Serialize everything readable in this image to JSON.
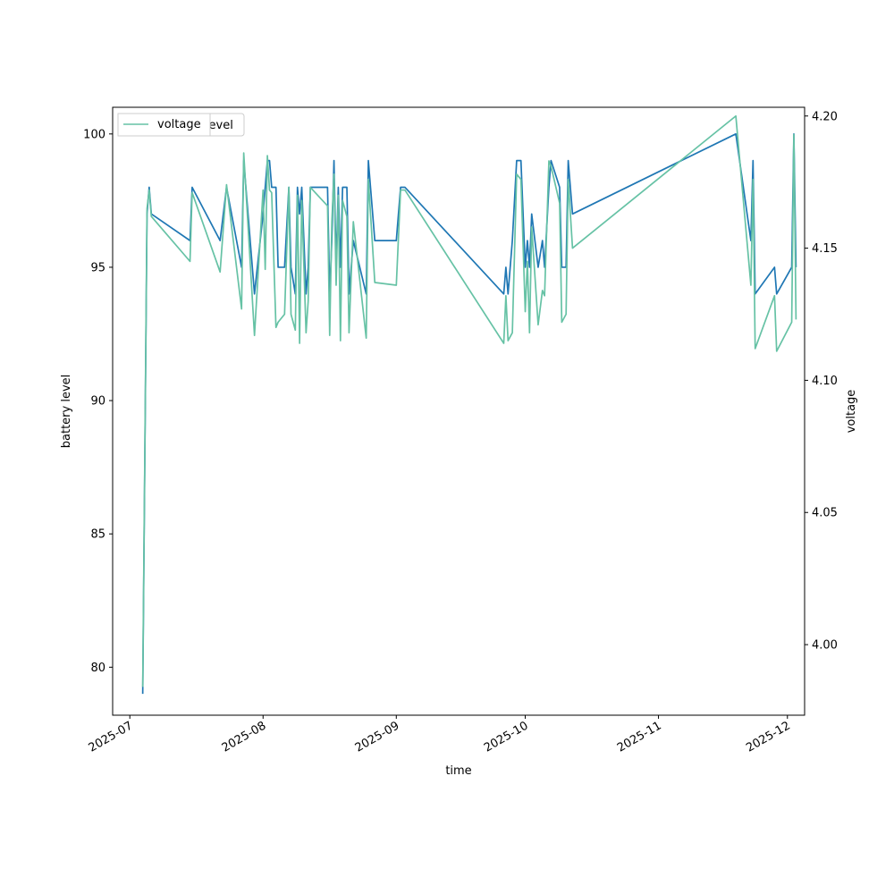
{
  "chart_data": {
    "type": "line",
    "xlabel": "time",
    "ylabel": "battery level",
    "y2label": "voltage",
    "x_type": "date",
    "x_ticks": [
      "2025-07",
      "2025-08",
      "2025-09",
      "2025-10",
      "2025-11",
      "2025-12"
    ],
    "xlim": [
      "2025-06-27",
      "2025-12-05"
    ],
    "ylim": [
      78.2,
      101.0
    ],
    "y2lim": [
      3.9733,
      4.2033
    ],
    "y_ticks": [
      80,
      85,
      90,
      95,
      100
    ],
    "y2_ticks": [
      4.0,
      4.05,
      4.1,
      4.15,
      4.2
    ],
    "grid": false,
    "legend": {
      "placement": "upper-left",
      "entries": [
        {
          "label": "battery_level",
          "series": "battery_level"
        },
        {
          "label": "voltage",
          "series": "voltage"
        }
      ]
    },
    "series": [
      {
        "name": "battery_level",
        "axis": "left",
        "color": "#1f77b4",
        "points": [
          [
            "2025-07-04T00:00",
            79
          ],
          [
            "2025-07-05T00:00",
            97
          ],
          [
            "2025-07-05T12:00",
            98
          ],
          [
            "2025-07-06T00:00",
            97
          ],
          [
            "2025-07-15T00:00",
            96
          ],
          [
            "2025-07-15T12:00",
            98
          ],
          [
            "2025-07-22T00:00",
            96
          ],
          [
            "2025-07-23T12:00",
            98
          ],
          [
            "2025-07-27T00:00",
            95
          ],
          [
            "2025-07-27T12:00",
            99
          ],
          [
            "2025-07-30T00:00",
            94
          ],
          [
            "2025-08-01T00:00",
            97
          ],
          [
            "2025-08-01T12:00",
            98
          ],
          [
            "2025-08-02T00:00",
            99
          ],
          [
            "2025-08-02T12:00",
            99
          ],
          [
            "2025-08-03T00:00",
            98
          ],
          [
            "2025-08-04T00:00",
            98
          ],
          [
            "2025-08-04T12:00",
            95
          ],
          [
            "2025-08-06T00:00",
            95
          ],
          [
            "2025-08-07T00:00",
            98
          ],
          [
            "2025-08-07T12:00",
            95
          ],
          [
            "2025-08-08T12:00",
            94
          ],
          [
            "2025-08-09T00:00",
            98
          ],
          [
            "2025-08-09T12:00",
            97
          ],
          [
            "2025-08-10T00:00",
            98
          ],
          [
            "2025-08-11T00:00",
            94
          ],
          [
            "2025-08-11T12:00",
            95
          ],
          [
            "2025-08-12T00:00",
            98
          ],
          [
            "2025-08-16T00:00",
            98
          ],
          [
            "2025-08-16T12:00",
            94
          ],
          [
            "2025-08-17T00:00",
            96
          ],
          [
            "2025-08-17T12:00",
            99
          ],
          [
            "2025-08-18T00:00",
            95
          ],
          [
            "2025-08-18T12:00",
            98
          ],
          [
            "2025-08-19T00:00",
            95
          ],
          [
            "2025-08-19T12:00",
            98
          ],
          [
            "2025-08-20T12:00",
            98
          ],
          [
            "2025-08-21T00:00",
            94
          ],
          [
            "2025-08-22T00:00",
            96
          ],
          [
            "2025-08-25T00:00",
            94
          ],
          [
            "2025-08-25T12:00",
            99
          ],
          [
            "2025-08-27T00:00",
            96
          ],
          [
            "2025-09-01T00:00",
            96
          ],
          [
            "2025-09-02T00:00",
            98
          ],
          [
            "2025-09-03T00:00",
            98
          ],
          [
            "2025-09-26T00:00",
            94
          ],
          [
            "2025-09-26T12:00",
            95
          ],
          [
            "2025-09-27T00:00",
            94
          ],
          [
            "2025-09-28T00:00",
            96
          ],
          [
            "2025-09-29T00:00",
            99
          ],
          [
            "2025-09-30T00:00",
            99
          ],
          [
            "2025-10-01T00:00",
            95
          ],
          [
            "2025-10-01T12:00",
            96
          ],
          [
            "2025-10-02T00:00",
            95
          ],
          [
            "2025-10-02T12:00",
            97
          ],
          [
            "2025-10-04T00:00",
            95
          ],
          [
            "2025-10-05T00:00",
            96
          ],
          [
            "2025-10-05T12:00",
            95
          ],
          [
            "2025-10-06T12:00",
            98
          ],
          [
            "2025-10-07T00:00",
            99
          ],
          [
            "2025-10-09T00:00",
            98
          ],
          [
            "2025-10-09T12:00",
            95
          ],
          [
            "2025-10-10T12:00",
            95
          ],
          [
            "2025-10-11T00:00",
            99
          ],
          [
            "2025-10-12T00:00",
            97
          ],
          [
            "2025-11-19T00:00",
            100
          ],
          [
            "2025-11-22T12:00",
            96
          ],
          [
            "2025-11-23T00:00",
            99
          ],
          [
            "2025-11-23T12:00",
            94
          ],
          [
            "2025-11-28T00:00",
            95
          ],
          [
            "2025-11-28T12:00",
            94
          ],
          [
            "2025-12-02T00:00",
            95
          ],
          [
            "2025-12-02T12:00",
            100
          ],
          [
            "2025-12-03T00:00",
            95
          ]
        ]
      },
      {
        "name": "voltage",
        "axis": "right",
        "color": "#66c2a5",
        "points": [
          [
            "2025-07-04T00:00",
            3.984
          ],
          [
            "2025-07-05T00:00",
            4.165
          ],
          [
            "2025-07-05T12:00",
            4.172
          ],
          [
            "2025-07-06T00:00",
            4.162
          ],
          [
            "2025-07-15T00:00",
            4.145
          ],
          [
            "2025-07-15T12:00",
            4.171
          ],
          [
            "2025-07-22T00:00",
            4.141
          ],
          [
            "2025-07-23T12:00",
            4.174
          ],
          [
            "2025-07-27T00:00",
            4.127
          ],
          [
            "2025-07-27T12:00",
            4.186
          ],
          [
            "2025-07-30T00:00",
            4.117
          ],
          [
            "2025-08-01T00:00",
            4.172
          ],
          [
            "2025-08-01T12:00",
            4.142
          ],
          [
            "2025-08-02T00:00",
            4.185
          ],
          [
            "2025-08-02T12:00",
            4.172
          ],
          [
            "2025-08-03T00:00",
            4.171
          ],
          [
            "2025-08-04T00:00",
            4.12
          ],
          [
            "2025-08-04T12:00",
            4.122
          ],
          [
            "2025-08-06T00:00",
            4.125
          ],
          [
            "2025-08-07T00:00",
            4.173
          ],
          [
            "2025-08-07T12:00",
            4.125
          ],
          [
            "2025-08-08T12:00",
            4.119
          ],
          [
            "2025-08-09T00:00",
            4.17
          ],
          [
            "2025-08-09T12:00",
            4.114
          ],
          [
            "2025-08-10T00:00",
            4.168
          ],
          [
            "2025-08-11T00:00",
            4.118
          ],
          [
            "2025-08-11T12:00",
            4.13
          ],
          [
            "2025-08-12T00:00",
            4.173
          ],
          [
            "2025-08-16T00:00",
            4.166
          ],
          [
            "2025-08-16T12:00",
            4.117
          ],
          [
            "2025-08-17T00:00",
            4.16
          ],
          [
            "2025-08-17T12:00",
            4.178
          ],
          [
            "2025-08-18T00:00",
            4.136
          ],
          [
            "2025-08-18T12:00",
            4.17
          ],
          [
            "2025-08-19T00:00",
            4.115
          ],
          [
            "2025-08-19T12:00",
            4.168
          ],
          [
            "2025-08-20T12:00",
            4.162
          ],
          [
            "2025-08-21T00:00",
            4.118
          ],
          [
            "2025-08-22T00:00",
            4.16
          ],
          [
            "2025-08-25T00:00",
            4.116
          ],
          [
            "2025-08-25T12:00",
            4.176
          ],
          [
            "2025-08-27T00:00",
            4.137
          ],
          [
            "2025-09-01T00:00",
            4.136
          ],
          [
            "2025-09-02T00:00",
            4.172
          ],
          [
            "2025-09-03T00:00",
            4.172
          ],
          [
            "2025-09-26T00:00",
            4.114
          ],
          [
            "2025-09-26T12:00",
            4.132
          ],
          [
            "2025-09-27T00:00",
            4.115
          ],
          [
            "2025-09-28T00:00",
            4.118
          ],
          [
            "2025-09-29T00:00",
            4.178
          ],
          [
            "2025-09-30T00:00",
            4.176
          ],
          [
            "2025-10-01T00:00",
            4.126
          ],
          [
            "2025-10-01T12:00",
            4.145
          ],
          [
            "2025-10-02T00:00",
            4.118
          ],
          [
            "2025-10-02T12:00",
            4.158
          ],
          [
            "2025-10-04T00:00",
            4.121
          ],
          [
            "2025-10-05T00:00",
            4.134
          ],
          [
            "2025-10-05T12:00",
            4.132
          ],
          [
            "2025-10-06T12:00",
            4.183
          ],
          [
            "2025-10-07T00:00",
            4.181
          ],
          [
            "2025-10-09T00:00",
            4.167
          ],
          [
            "2025-10-09T12:00",
            4.122
          ],
          [
            "2025-10-10T12:00",
            4.125
          ],
          [
            "2025-10-11T00:00",
            4.176
          ],
          [
            "2025-10-12T00:00",
            4.15
          ],
          [
            "2025-11-19T00:00",
            4.2
          ],
          [
            "2025-11-22T12:00",
            4.136
          ],
          [
            "2025-11-23T00:00",
            4.176
          ],
          [
            "2025-11-23T12:00",
            4.112
          ],
          [
            "2025-11-28T00:00",
            4.132
          ],
          [
            "2025-11-28T12:00",
            4.111
          ],
          [
            "2025-12-02T00:00",
            4.122
          ],
          [
            "2025-12-02T12:00",
            4.193
          ],
          [
            "2025-12-03T00:00",
            4.123
          ]
        ]
      }
    ]
  }
}
